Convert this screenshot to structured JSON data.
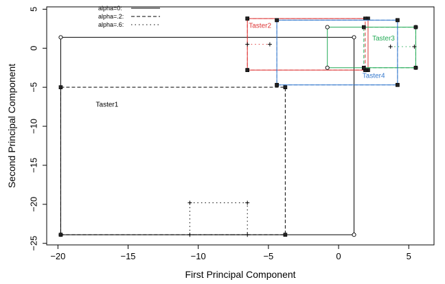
{
  "chart_data": {
    "type": "scatter",
    "xlabel": "First Principal Component",
    "ylabel": "Second Principal Component",
    "xlim": [
      -20.8,
      6.8
    ],
    "ylim": [
      -25.2,
      5.3
    ],
    "xticks": [
      -20,
      -15,
      -10,
      -5,
      0,
      5
    ],
    "xtick_labels": [
      "−20",
      "−15",
      "−10",
      "−5",
      "0",
      "5"
    ],
    "yticks": [
      5,
      0,
      -5,
      -10,
      -15,
      -20,
      -25
    ],
    "ytick_labels": [
      "5",
      "0",
      "−5",
      "−10",
      "−15",
      "−20",
      "−25"
    ],
    "grid": false,
    "legend": {
      "placement": "top-left",
      "entries": [
        {
          "label": "alpha=0:",
          "dash": "solid"
        },
        {
          "label": "alpha=.2:",
          "dash": "dashed"
        },
        {
          "label": "alpha=.6:",
          "dash": "dotted"
        }
      ]
    },
    "series": [
      {
        "name": "Taster1",
        "color": "#000000",
        "label_at": [
          -17.3,
          -7.5
        ],
        "boxes": [
          {
            "alpha": "0",
            "x": [
              -19.8,
              1.1
            ],
            "y": [
              -23.9,
              1.4
            ],
            "marker": "circle"
          },
          {
            "alpha": ".2",
            "x": [
              -19.8,
              -3.8
            ],
            "y": [
              -23.9,
              -5.0
            ],
            "marker": "square"
          },
          {
            "alpha": ".6",
            "x": [
              -10.6,
              -6.5
            ],
            "y": [
              -23.9,
              -19.8
            ],
            "marker": "plus"
          }
        ]
      },
      {
        "name": "Taster2",
        "color": "#dd3333",
        "label_at": [
          -6.4,
          2.6
        ],
        "boxes": [
          {
            "alpha": "0",
            "x": [
              -6.5,
              2.1
            ],
            "y": [
              -2.8,
              3.8
            ],
            "marker": "square"
          },
          {
            "alpha": ".2",
            "x": [
              -6.5,
              1.9
            ],
            "y": [
              -2.8,
              3.8
            ],
            "marker": "square"
          },
          {
            "alpha": ".6",
            "x": [
              -6.5,
              -4.9
            ],
            "y": [
              0.5,
              0.5
            ],
            "marker": "plus"
          }
        ]
      },
      {
        "name": "Taster3",
        "color": "#22aa55",
        "label_at": [
          2.4,
          1.0
        ],
        "boxes": [
          {
            "alpha": "0",
            "x": [
              -0.8,
              5.5
            ],
            "y": [
              -2.5,
              2.7
            ],
            "marker": "circle"
          },
          {
            "alpha": ".2",
            "x": [
              1.8,
              5.5
            ],
            "y": [
              -2.5,
              2.7
            ],
            "marker": "square"
          },
          {
            "alpha": ".6",
            "x": [
              3.7,
              5.4
            ],
            "y": [
              0.2,
              0.2
            ],
            "marker": "plus"
          }
        ]
      },
      {
        "name": "Taster4",
        "color": "#3377cc",
        "label_at": [
          1.7,
          -3.8
        ],
        "boxes": [
          {
            "alpha": "0",
            "x": [
              -4.4,
              4.2
            ],
            "y": [
              -4.7,
              3.6
            ],
            "marker": "square"
          },
          {
            "alpha": ".2",
            "x": [
              -4.4,
              4.2
            ],
            "y": [
              -4.7,
              3.6
            ],
            "marker": "square"
          }
        ]
      }
    ]
  }
}
